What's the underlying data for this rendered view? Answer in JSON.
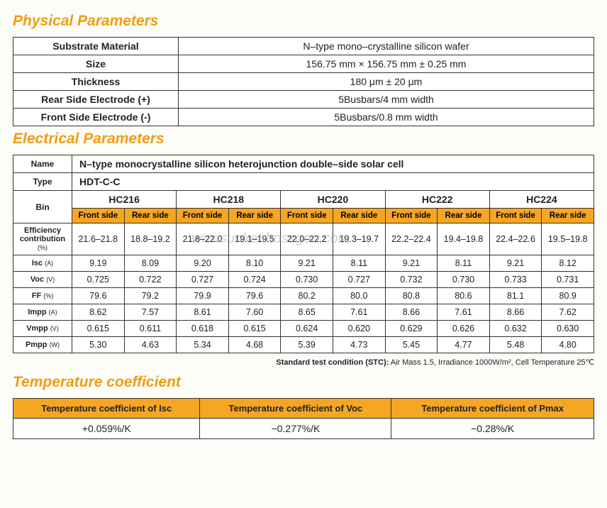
{
  "sections": {
    "physical": "Physical Parameters",
    "electrical": "Electrical Parameters",
    "temperature": "Temperature coefficient"
  },
  "physical": {
    "rows": [
      {
        "label": "Substrate Material",
        "value": "N–type mono–crystalline silicon wafer"
      },
      {
        "label": "Size",
        "value": "156.75 mm × 156.75 mm ± 0.25 mm"
      },
      {
        "label": "Thickness",
        "value": "180 μm ± 20 μm"
      },
      {
        "label": "Rear Side Electrode (+)",
        "value": "5Busbars/4 mm width"
      },
      {
        "label": "Front Side Electrode (-)",
        "value": "5Busbars/0.8 mm width"
      }
    ]
  },
  "electrical": {
    "name_label": "Name",
    "name_value": "N–type monocrystalline silicon heterojunction double–side solar cell",
    "type_label": "Type",
    "type_value": "HDT-C-C",
    "bin_label": "Bin",
    "bins": [
      "HC216",
      "HC218",
      "HC220",
      "HC222",
      "HC224"
    ],
    "side_labels": [
      "Front side",
      "Rear side"
    ],
    "params": [
      {
        "label": "Efficiency contribution",
        "unit": "(%)",
        "vals": [
          "21.6–21.8",
          "18.8–19.2",
          "21.8–22.0",
          "19.1–19.5",
          "22.0–22.2",
          "19.3–19.7",
          "22.2–22.4",
          "19.4–19.8",
          "22.4–22.6",
          "19.5–19.8"
        ]
      },
      {
        "label": "Isc",
        "unit": "(A)",
        "vals": [
          "9.19",
          "8.09",
          "9.20",
          "8.10",
          "9.21",
          "8.11",
          "9.21",
          "8.11",
          "9.21",
          "8.12"
        ]
      },
      {
        "label": "Voc",
        "unit": "(V)",
        "vals": [
          "0.725",
          "0.722",
          "0.727",
          "0.724",
          "0.730",
          "0.727",
          "0.732",
          "0.730",
          "0.733",
          "0.731"
        ]
      },
      {
        "label": "FF",
        "unit": "(%)",
        "vals": [
          "79.6",
          "79.2",
          "79.9",
          "79.6",
          "80.2",
          "80.0",
          "80.8",
          "80.6",
          "81.1",
          "80.9"
        ]
      },
      {
        "label": "Impp",
        "unit": "(A)",
        "vals": [
          "8.62",
          "7.57",
          "8.61",
          "7.60",
          "8.65",
          "7.61",
          "8.66",
          "7.61",
          "8.66",
          "7.62"
        ]
      },
      {
        "label": "Vmpp",
        "unit": "(V)",
        "vals": [
          "0.615",
          "0.611",
          "0.618",
          "0.615",
          "0.624",
          "0.620",
          "0.629",
          "0.626",
          "0.632",
          "0.630"
        ]
      },
      {
        "label": "Pmpp",
        "unit": "(W)",
        "vals": [
          "5.30",
          "4.63",
          "5.34",
          "4.68",
          "5.39",
          "4.73",
          "5.45",
          "4.77",
          "5.48",
          "4.80"
        ]
      }
    ]
  },
  "stc_note_label": "Standard test condition (STC):",
  "stc_note_value": " Air Mass 1.5, Irradiance 1000W/m², Cell Temperature 25℃",
  "temperature": {
    "headers": [
      "Temperature coefficient of Isc",
      "Temperature coefficient of Voc",
      "Temperature coefficient of Pmax"
    ],
    "values": [
      "+0.059%/K",
      "−0.277%/K",
      "−0.28%/K"
    ]
  },
  "watermark": "wuxisunket.bossgoo.com",
  "colors": {
    "accent": "#f39c12",
    "header_bg": "#f6a623",
    "border": "#333333",
    "bg": "#fcfdf8"
  }
}
